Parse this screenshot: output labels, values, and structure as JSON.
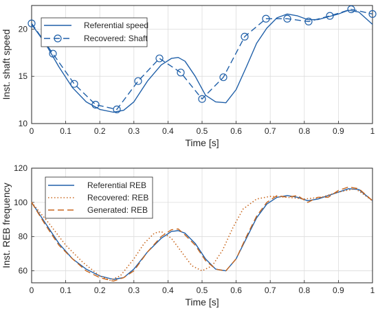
{
  "chart_data": [
    {
      "type": "line",
      "xlabel": "Time [s]",
      "ylabel": "Inst. shaft speed",
      "xlim": [
        0,
        1
      ],
      "ylim": [
        10,
        22.5
      ],
      "xticks": [
        0,
        0.1,
        0.2,
        0.3,
        0.4,
        0.5,
        0.6,
        0.7,
        0.8,
        0.9,
        1
      ],
      "xtick_labels": [
        "0",
        "0.1",
        "0.2",
        "0.3",
        "0.4",
        "0.5",
        "0.6",
        "0.7",
        "0.8",
        "0.9",
        "1"
      ],
      "yticks": [
        10,
        15,
        20
      ],
      "ytick_labels": [
        "10",
        "15",
        "20"
      ],
      "grid": true,
      "legend_position": "top-left",
      "series": [
        {
          "name": "Referential speed",
          "color": "#1f5fa8",
          "style": "solid",
          "x": [
            0,
            0.04,
            0.08,
            0.12,
            0.16,
            0.2,
            0.24,
            0.27,
            0.3,
            0.34,
            0.38,
            0.41,
            0.43,
            0.45,
            0.48,
            0.51,
            0.54,
            0.57,
            0.6,
            0.63,
            0.66,
            0.69,
            0.72,
            0.75,
            0.78,
            0.81,
            0.84,
            0.87,
            0.9,
            0.93,
            0.96,
            1.0
          ],
          "y": [
            20.5,
            18.5,
            16.0,
            13.8,
            12.3,
            11.5,
            11.2,
            11.4,
            12.3,
            14.5,
            16.2,
            16.9,
            17.0,
            16.6,
            15.0,
            13.0,
            12.3,
            12.2,
            13.6,
            16.0,
            18.5,
            20.1,
            21.2,
            21.6,
            21.4,
            21.0,
            21.0,
            21.3,
            21.6,
            22.0,
            21.8,
            20.5
          ]
        },
        {
          "name": "Recovered: Shaft",
          "color": "#1f5fa8",
          "style": "dashed",
          "markers": "circle",
          "x": [
            0,
            0.0625,
            0.125,
            0.1875,
            0.25,
            0.3125,
            0.375,
            0.4375,
            0.5,
            0.5625,
            0.625,
            0.6875,
            0.75,
            0.8125,
            0.875,
            0.9375,
            1.0
          ],
          "y": [
            20.6,
            17.4,
            14.2,
            12.0,
            11.5,
            14.5,
            16.9,
            15.4,
            12.6,
            14.9,
            19.2,
            21.1,
            21.1,
            20.8,
            21.4,
            22.1,
            21.6
          ]
        }
      ]
    },
    {
      "type": "line",
      "xlabel": "Time [s]",
      "ylabel": "Inst. REB frequency",
      "xlim": [
        0,
        1
      ],
      "ylim": [
        53,
        120
      ],
      "xticks": [
        0,
        0.1,
        0.2,
        0.3,
        0.4,
        0.5,
        0.6,
        0.7,
        0.8,
        0.9,
        1
      ],
      "xtick_labels": [
        "0",
        "0.1",
        "0.2",
        "0.3",
        "0.4",
        "0.5",
        "0.6",
        "0.7",
        "0.8",
        "0.9",
        "1"
      ],
      "yticks": [
        60,
        80,
        100,
        120
      ],
      "ytick_labels": [
        "60",
        "80",
        "100",
        "120"
      ],
      "grid": true,
      "legend_position": "top-left",
      "series": [
        {
          "name": "Referential REB",
          "color": "#1f5fa8",
          "style": "solid",
          "x": [
            0,
            0.04,
            0.08,
            0.12,
            0.16,
            0.2,
            0.24,
            0.27,
            0.3,
            0.34,
            0.38,
            0.41,
            0.43,
            0.45,
            0.48,
            0.51,
            0.54,
            0.57,
            0.6,
            0.63,
            0.66,
            0.69,
            0.72,
            0.75,
            0.78,
            0.81,
            0.84,
            0.87,
            0.9,
            0.93,
            0.96,
            1.0
          ],
          "y": [
            100,
            88,
            76,
            67,
            61,
            57,
            55,
            56,
            61,
            71,
            79,
            83,
            83.5,
            82,
            76,
            67,
            61,
            60,
            67,
            79,
            91,
            99,
            103,
            104,
            103,
            101,
            102,
            104,
            106,
            108,
            107.5,
            101
          ]
        },
        {
          "name": "Recovered: REB",
          "color": "#c8651b",
          "style": "dotted",
          "x": [
            0,
            0.05,
            0.1,
            0.15,
            0.2,
            0.23,
            0.26,
            0.3,
            0.33,
            0.36,
            0.38,
            0.41,
            0.44,
            0.47,
            0.5,
            0.53,
            0.56,
            0.59,
            0.62,
            0.66,
            0.7,
            0.75,
            0.8,
            0.85,
            0.9,
            0.95,
            1.0
          ],
          "y": [
            100,
            88,
            75,
            65,
            57,
            54.5,
            57,
            67,
            76,
            82,
            83,
            79,
            71,
            63,
            60,
            63,
            72,
            85,
            96,
            102,
            103.5,
            103,
            102,
            103,
            106,
            108,
            101
          ]
        },
        {
          "name": "Generated: REB",
          "color": "#c8651b",
          "style": "dashed",
          "x": [
            0,
            0.04,
            0.08,
            0.12,
            0.16,
            0.2,
            0.24,
            0.27,
            0.3,
            0.34,
            0.38,
            0.41,
            0.43,
            0.45,
            0.48,
            0.51,
            0.54,
            0.57,
            0.6,
            0.63,
            0.66,
            0.69,
            0.72,
            0.75,
            0.78,
            0.81,
            0.84,
            0.87,
            0.9,
            0.93,
            0.96,
            1.0
          ],
          "y": [
            100,
            87,
            75,
            67,
            60,
            56,
            54,
            56,
            60,
            71,
            80,
            84,
            84.5,
            81,
            75,
            66,
            61,
            60,
            67,
            80,
            92,
            100,
            104,
            103,
            104,
            100,
            103,
            103,
            107,
            109,
            108,
            101
          ]
        }
      ]
    }
  ]
}
